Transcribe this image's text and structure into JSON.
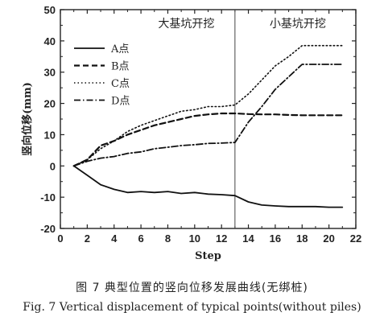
{
  "chart_data": {
    "type": "line",
    "xlabel": "Step",
    "ylabel": "竖向位移(mm)",
    "xlim": [
      0,
      22
    ],
    "ylim": [
      -20,
      50
    ],
    "xticks": [
      0,
      2,
      4,
      6,
      8,
      10,
      12,
      14,
      16,
      18,
      20,
      22
    ],
    "yticks": [
      -20,
      -10,
      0,
      10,
      20,
      30,
      40,
      50
    ],
    "divider_x": 13,
    "region_labels": [
      "大基坑开挖",
      "小基坑开挖"
    ],
    "legend_position": "top-left",
    "series": [
      {
        "name": "A点",
        "style": "solid",
        "x": [
          1,
          2,
          3,
          4,
          5,
          6,
          7,
          8,
          9,
          10,
          11,
          12,
          13,
          14,
          15,
          16,
          17,
          18,
          19,
          20,
          21
        ],
        "y": [
          0,
          -3,
          -6,
          -7.5,
          -8.5,
          -8.2,
          -8.5,
          -8.2,
          -8.8,
          -8.5,
          -9,
          -9.2,
          -9.5,
          -11.5,
          -12.5,
          -12.8,
          -13,
          -13,
          -13,
          -13.2,
          -13.2
        ]
      },
      {
        "name": "B点",
        "style": "dashed",
        "x": [
          1,
          2,
          3,
          4,
          5,
          6,
          7,
          8,
          9,
          10,
          11,
          12,
          13,
          14,
          15,
          16,
          17,
          18,
          19,
          20,
          21
        ],
        "y": [
          0,
          2,
          6.5,
          8,
          10,
          11.5,
          13,
          14,
          15,
          16,
          16.5,
          16.8,
          16.8,
          16.6,
          16.5,
          16.5,
          16.3,
          16.2,
          16.2,
          16.2,
          16.2
        ]
      },
      {
        "name": "C点",
        "style": "dotted",
        "x": [
          1,
          2,
          3,
          4,
          5,
          6,
          7,
          8,
          9,
          10,
          11,
          12,
          13,
          14,
          15,
          16,
          17,
          18,
          19,
          20,
          21
        ],
        "y": [
          0,
          2,
          5.5,
          8,
          11,
          13,
          14.5,
          16,
          17.5,
          18,
          19,
          19,
          19.5,
          23,
          27.5,
          32,
          35,
          38.5,
          38.5,
          38.5,
          38.5
        ]
      },
      {
        "name": "D点",
        "style": "dashdot",
        "x": [
          1,
          2,
          3,
          4,
          5,
          6,
          7,
          8,
          9,
          10,
          11,
          12,
          13,
          14,
          15,
          16,
          17,
          18,
          19,
          20,
          21
        ],
        "y": [
          0,
          1.5,
          2.5,
          3,
          4,
          4.5,
          5.5,
          6,
          6.5,
          6.8,
          7.2,
          7.3,
          7.5,
          14,
          19,
          24.5,
          28.5,
          32.5,
          32.5,
          32.5,
          32.5
        ]
      }
    ]
  },
  "caption_cn": "图 7   典型位置的竖向位移发展曲线(无绑桩)",
  "caption_en": "Fig. 7   Vertical displacement of typical points(without piles)"
}
